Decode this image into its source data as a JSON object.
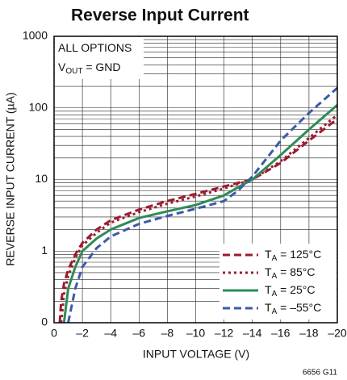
{
  "chart_data": {
    "type": "line",
    "title": "Reverse Input Current",
    "x_label": "INPUT VOLTAGE (V)",
    "y_label": "REVERSE INPUT CURRENT (µA)",
    "footnote": "6656 G11",
    "annotation": [
      [
        {
          "text": "ALL OPTIONS"
        }
      ],
      [
        {
          "text": "V"
        },
        {
          "text": "OUT",
          "sub": true
        },
        {
          "text": " = GND"
        }
      ]
    ],
    "log_y": true,
    "grid": true,
    "minor_grid": true,
    "legend": "lower right",
    "xlim": [
      0,
      -20
    ],
    "ylim": [
      0.1,
      1000
    ],
    "xticks": [
      0,
      {
        "value": -2,
        "label": "–2"
      },
      {
        "value": -4,
        "label": "–4"
      },
      {
        "value": -6,
        "label": "–6"
      },
      {
        "value": -8,
        "label": "–8"
      },
      {
        "value": -10,
        "label": "–10"
      },
      {
        "value": -12,
        "label": "–12"
      },
      {
        "value": -14,
        "label": "–14"
      },
      {
        "value": -16,
        "label": "–16"
      },
      {
        "value": -18,
        "label": "–18"
      },
      {
        "value": -20,
        "label": "–20"
      }
    ],
    "yticks": [
      {
        "value": 0.1,
        "label": "0"
      },
      1,
      10,
      100,
      1000
    ],
    "x": [
      -0.4,
      -0.5,
      -0.7,
      -1,
      -1.5,
      -2,
      -3,
      -4,
      -6,
      -8,
      -10,
      -12,
      -13,
      -14,
      -16,
      -18,
      -20
    ],
    "series": [
      {
        "name": "TA = 125°C",
        "color": "#9b1c2e",
        "dash": "dashed",
        "values": [
          0.1,
          0.2,
          0.35,
          0.55,
          0.9,
          1.3,
          2,
          2.7,
          3.8,
          5,
          6.3,
          8,
          9,
          10,
          17,
          35,
          70
        ]
      },
      {
        "name": "TA = 85°C",
        "color": "#9b1c2e",
        "dash": "dotted",
        "values": [
          null,
          0.1,
          0.25,
          0.45,
          0.8,
          1.2,
          1.8,
          2.5,
          3.5,
          4.6,
          5.8,
          7.5,
          8.7,
          10,
          18,
          38,
          80
        ]
      },
      {
        "name": "TA = 25°C",
        "color": "#2e8b57",
        "dash": "solid",
        "values": [
          null,
          null,
          0.1,
          0.3,
          0.6,
          1.0,
          1.5,
          2,
          2.9,
          3.6,
          4.4,
          6,
          7.8,
          10,
          22,
          50,
          110
        ]
      },
      {
        "name": "TA = –55°C",
        "color": "#3b5aa8",
        "dash": "dashed",
        "values": [
          null,
          null,
          null,
          0.1,
          0.3,
          0.6,
          1.1,
          1.6,
          2.4,
          3.1,
          3.9,
          5,
          7,
          11,
          35,
          85,
          190
        ]
      }
    ]
  }
}
